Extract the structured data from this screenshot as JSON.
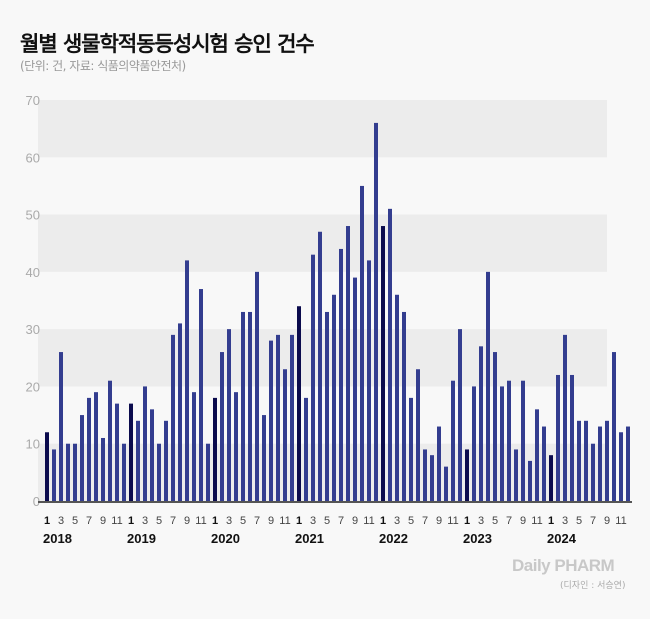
{
  "title": "월별 생물학적동등성시험 승인 건수",
  "subtitle": "(단위: 건, 자료: 식품의약품안전처)",
  "logo": "Daily PHARM",
  "credit": "(디자인 : 서승연)",
  "colors": {
    "bar": "#333d8f",
    "bar_january": "#0b0b4d",
    "band": "#ececec",
    "background": "#f8f8f8"
  },
  "chart_data": {
    "type": "bar",
    "title": "월별 생물학적동등성시험 승인 건수",
    "xlabel": "",
    "ylabel": "",
    "ylim": [
      0,
      70
    ],
    "yticks": [
      0,
      10,
      20,
      30,
      40,
      50,
      60,
      70
    ],
    "month_ticks": [
      "1",
      "3",
      "5",
      "7",
      "9",
      "11"
    ],
    "years": [
      "2018",
      "2019",
      "2020",
      "2021",
      "2022",
      "2023",
      "2024"
    ],
    "series": [
      {
        "name": "승인 건수",
        "values": [
          12,
          9,
          26,
          10,
          10,
          15,
          18,
          19,
          11,
          21,
          17,
          10,
          17,
          14,
          20,
          16,
          10,
          14,
          29,
          31,
          42,
          19,
          37,
          10,
          18,
          26,
          30,
          19,
          33,
          33,
          40,
          15,
          28,
          29,
          23,
          29,
          34,
          18,
          43,
          47,
          33,
          36,
          44,
          48,
          39,
          55,
          42,
          66,
          48,
          51,
          36,
          33,
          18,
          23,
          9,
          8,
          13,
          6,
          21,
          30,
          9,
          20,
          27,
          40,
          26,
          20,
          21,
          9,
          21,
          7,
          16,
          13,
          8,
          22,
          29,
          22,
          14,
          14,
          10,
          13,
          14,
          26,
          12,
          13
        ]
      }
    ],
    "grid": "alternating horizontal bands"
  }
}
